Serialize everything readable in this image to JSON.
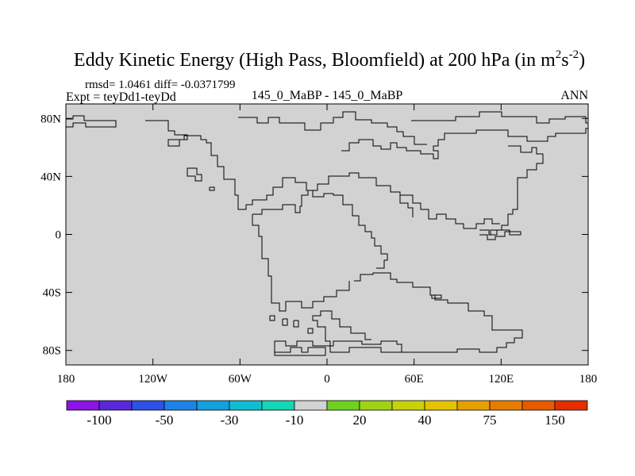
{
  "chart_data": {
    "type": "map",
    "title": {
      "main": "Eddy Kinetic Energy (High Pass, Bloomfield) at 200 hPa (in m",
      "unit_base_sup": "2",
      "unit_s": "s",
      "unit_s_sup": "-2",
      "close": ")"
    },
    "stats": "rmsd= 1.0461 diff= -0.0371799",
    "experiment": "Expt = teyDd1-teyDd",
    "case_label": "145_0_MaBP - 145_0_MaBP",
    "season": "ANN",
    "x_range": [
      -180,
      180
    ],
    "y_range": [
      -90,
      90
    ],
    "x_ticks": [
      {
        "value": -180,
        "label": "180"
      },
      {
        "value": -120,
        "label": "120W"
      },
      {
        "value": -60,
        "label": "60W"
      },
      {
        "value": 0,
        "label": "0"
      },
      {
        "value": 60,
        "label": "60E"
      },
      {
        "value": 120,
        "label": "120E"
      },
      {
        "value": 180,
        "label": "180"
      }
    ],
    "y_ticks": [
      {
        "value": 80,
        "label": "80N"
      },
      {
        "value": 40,
        "label": "40N"
      },
      {
        "value": 0,
        "label": "0"
      },
      {
        "value": -40,
        "label": "40S"
      },
      {
        "value": -80,
        "label": "80S"
      }
    ],
    "field_fill": "#d2d2d2",
    "field_category": "-10 to 20",
    "colorbar": {
      "colors": [
        "#8c14e6",
        "#5a28dc",
        "#2d50e6",
        "#1e82e6",
        "#14a0dc",
        "#0fbed2",
        "#14d7b4",
        "#d2d2d2",
        "#6ed21e",
        "#a0d214",
        "#c8d20a",
        "#e6c300",
        "#e6a000",
        "#e67d00",
        "#e65a00",
        "#e62d00"
      ],
      "tick_labels": [
        {
          "index": 1,
          "label": "-100"
        },
        {
          "index": 3,
          "label": "-50"
        },
        {
          "index": 5,
          "label": "-30"
        },
        {
          "index": 7,
          "label": "-10"
        },
        {
          "index": 9,
          "label": "20"
        },
        {
          "index": 11,
          "label": "40"
        },
        {
          "index": 13,
          "label": "75"
        },
        {
          "index": 15,
          "label": "150"
        }
      ]
    }
  }
}
